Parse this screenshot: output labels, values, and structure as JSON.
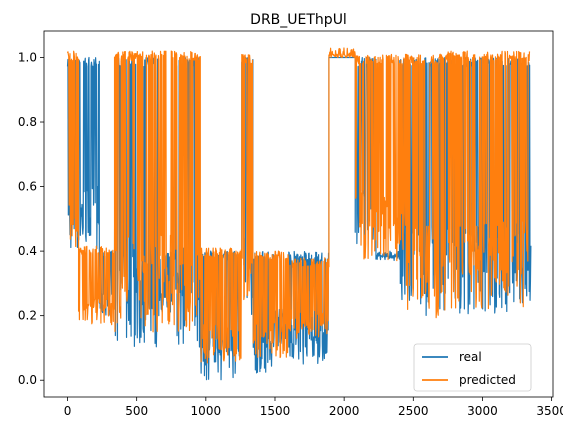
{
  "chart_data": {
    "type": "line",
    "title": "DRB_UEThpUl",
    "xlabel": "",
    "ylabel": "",
    "xlim": [
      -170,
      3510
    ],
    "ylim": [
      -0.052,
      1.082
    ],
    "x_ticks": [
      0,
      500,
      1000,
      1500,
      2000,
      2500,
      3000,
      3500
    ],
    "x_tick_labels": [
      "0",
      "500",
      "1000",
      "1500",
      "2000",
      "2500",
      "3000",
      "3500"
    ],
    "y_ticks": [
      0.0,
      0.2,
      0.4,
      0.6,
      0.8,
      1.0
    ],
    "y_tick_labels": [
      "0.0",
      "0.2",
      "0.4",
      "0.6",
      "0.8",
      "1.0"
    ],
    "grid": false,
    "legend_position": "lower-right",
    "series": [
      {
        "name": "real",
        "color": "#1f77b4",
        "segments": [
          {
            "x0": 0,
            "x1": 230,
            "low": 0.4,
            "high": 1.0
          },
          {
            "x0": 230,
            "x1": 340,
            "low": 0.2,
            "high": 0.4
          },
          {
            "x0": 340,
            "x1": 660,
            "low": 0.1,
            "high": 1.0
          },
          {
            "x0": 660,
            "x1": 780,
            "low": 0.2,
            "high": 0.4
          },
          {
            "x0": 780,
            "x1": 960,
            "low": 0.1,
            "high": 1.0
          },
          {
            "x0": 960,
            "x1": 1260,
            "low": 0.0,
            "high": 0.4
          },
          {
            "x0": 1260,
            "x1": 1340,
            "low": 0.2,
            "high": 1.0
          },
          {
            "x0": 1340,
            "x1": 1490,
            "low": 0.02,
            "high": 0.4
          },
          {
            "x0": 1490,
            "x1": 1600,
            "low": 0.1,
            "high": 0.22
          },
          {
            "x0": 1600,
            "x1": 1890,
            "low": 0.05,
            "high": 0.4
          },
          {
            "x0": 1890,
            "x1": 2080,
            "low": 1.0,
            "high": 1.0
          },
          {
            "x0": 2080,
            "x1": 2230,
            "low": 0.4,
            "high": 1.0
          },
          {
            "x0": 2230,
            "x1": 2400,
            "low": 0.38,
            "high": 0.4
          },
          {
            "x0": 2400,
            "x1": 2680,
            "low": 0.2,
            "high": 1.0
          },
          {
            "x0": 2680,
            "x1": 3350,
            "low": 0.2,
            "high": 1.0
          }
        ]
      },
      {
        "name": "predicted",
        "color": "#ff7f0e",
        "segments": [
          {
            "x0": 0,
            "x1": 80,
            "low": 0.38,
            "high": 1.02
          },
          {
            "x0": 80,
            "x1": 340,
            "low": 0.17,
            "high": 0.42
          },
          {
            "x0": 340,
            "x1": 960,
            "low": 0.15,
            "high": 1.02
          },
          {
            "x0": 960,
            "x1": 1260,
            "low": 0.05,
            "high": 0.41
          },
          {
            "x0": 1260,
            "x1": 1340,
            "low": 0.25,
            "high": 1.01
          },
          {
            "x0": 1340,
            "x1": 1600,
            "low": 0.07,
            "high": 0.4
          },
          {
            "x0": 1600,
            "x1": 1890,
            "low": 0.13,
            "high": 0.38
          },
          {
            "x0": 1890,
            "x1": 2080,
            "low": 1.0,
            "high": 1.03
          },
          {
            "x0": 2080,
            "x1": 2450,
            "low": 0.37,
            "high": 1.01
          },
          {
            "x0": 2450,
            "x1": 2680,
            "low": 0.19,
            "high": 1.01
          },
          {
            "x0": 2680,
            "x1": 3340,
            "low": 0.21,
            "high": 1.02
          }
        ]
      }
    ]
  }
}
